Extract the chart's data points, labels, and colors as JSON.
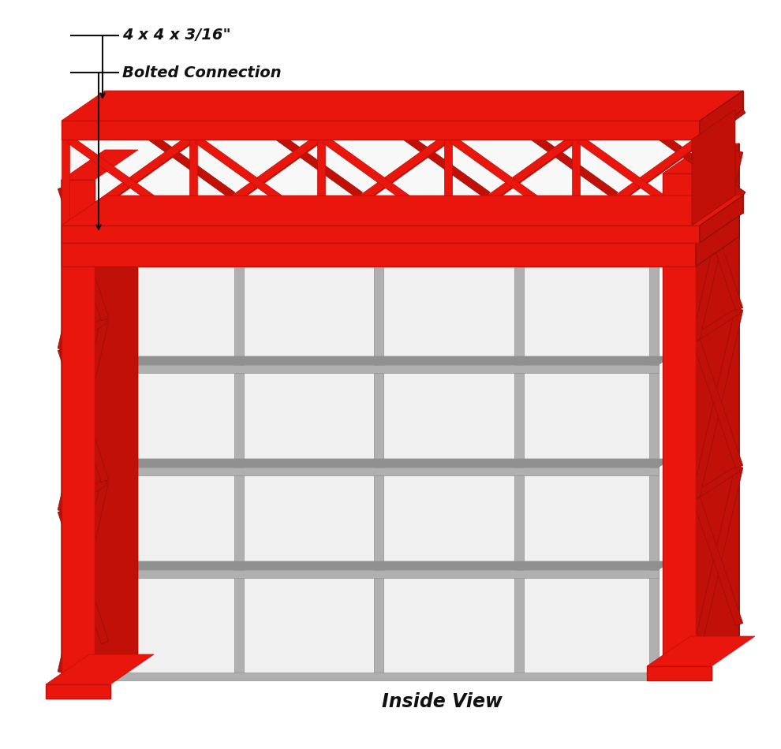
{
  "background_color": "#ffffff",
  "red_color": "#e8160c",
  "red_dark": "#c01008",
  "red_darker": "#901008",
  "steel_color": "#d0d0d0",
  "steel_dark": "#b0b0b0",
  "steel_darker": "#909090",
  "black_color": "#111111",
  "label1_text": "4 x 4 x 3/16\"",
  "label2_text": "Bolted Connection",
  "bottom_label": "Inside View",
  "title_fontsize": 16,
  "label_fontsize": 14
}
